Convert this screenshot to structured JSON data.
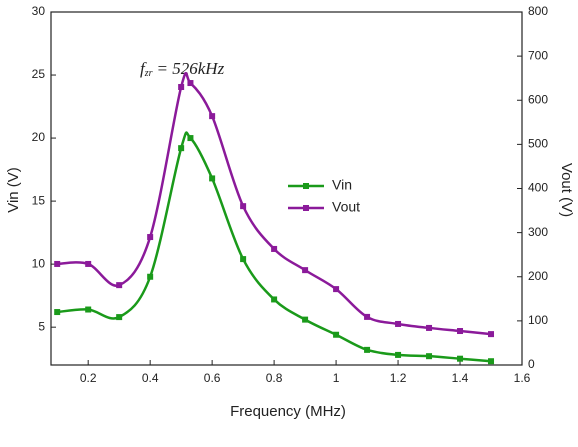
{
  "chart_data": {
    "type": "line",
    "x_label": "Frequency (MHz)",
    "y_label": "Vin (V)",
    "y2_label": "Vout (V)",
    "annotation": "f",
    "annotation_sub": "zr",
    "annotation_rest": "= 526kHz",
    "x": [
      0.1,
      0.2,
      0.3,
      0.4,
      0.5,
      0.53,
      0.6,
      0.7,
      0.8,
      0.9,
      1.0,
      1.1,
      1.2,
      1.3,
      1.4,
      1.5
    ],
    "series": [
      {
        "name": "Vin",
        "color": "#1a9a1a",
        "axis": "y",
        "values": [
          6.2,
          6.4,
          5.8,
          9.0,
          19.2,
          20.0,
          16.8,
          10.4,
          7.2,
          5.6,
          4.4,
          3.2,
          2.8,
          2.7,
          2.5,
          2.3
        ]
      },
      {
        "name": "Vout",
        "color": "#8b1a9a",
        "axis": "y2",
        "values": [
          229,
          229,
          181,
          290,
          630,
          639,
          564,
          360,
          263,
          215,
          172,
          109,
          93,
          84,
          77,
          70
        ]
      }
    ],
    "xlim": [
      0.08,
      1.6
    ],
    "xticks": [
      0.2,
      0.4,
      0.6,
      0.8,
      1.0,
      1.2,
      1.4,
      1.6
    ],
    "ylim": [
      2,
      30
    ],
    "yticks": [
      5,
      10,
      15,
      20,
      25,
      30
    ],
    "y2lim": [
      0,
      800
    ],
    "y2ticks": [
      0,
      100,
      200,
      300,
      400,
      500,
      600,
      700,
      800
    ],
    "grid": false,
    "legend": "center"
  }
}
